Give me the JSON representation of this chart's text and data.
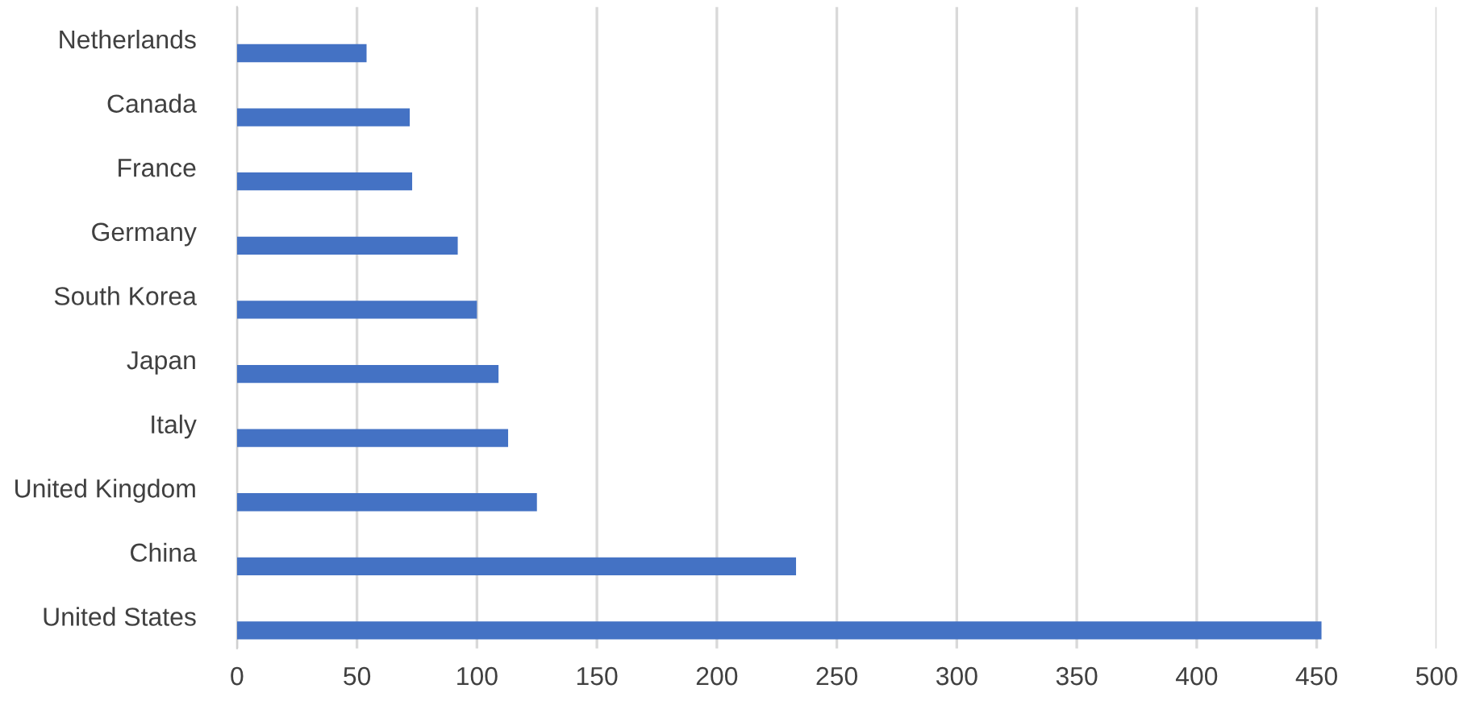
{
  "chart_data": {
    "type": "bar",
    "orientation": "horizontal",
    "categories": [
      "Netherlands",
      "Canada",
      "France",
      "Germany",
      "South Korea",
      "Japan",
      "Italy",
      "United Kingdom",
      "China",
      "United States"
    ],
    "values": [
      54,
      72,
      73,
      92,
      100,
      109,
      113,
      125,
      233,
      452
    ],
    "color": "#4472c4",
    "xlim": [
      0,
      500
    ],
    "xticks": [
      0,
      50,
      100,
      150,
      200,
      250,
      300,
      350,
      400,
      450,
      500
    ],
    "grid": "x",
    "legend": false
  }
}
